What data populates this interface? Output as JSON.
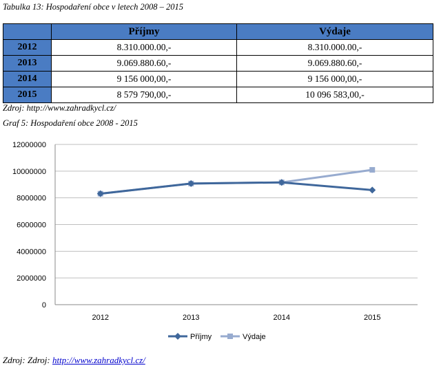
{
  "captions": {
    "table_title": "Tabulka 13: Hospodaření obce v letech 2008 – 2015",
    "table_source": "Zdroj: http://www.zahradkycl.cz/",
    "chart_title": "Graf 5: Hospodaření obce 2008 - 2015",
    "chart_source_prefix": "Zdroj: Zdroj: ",
    "chart_source_link": "http://www.zahradkycl.cz/"
  },
  "table": {
    "headers": [
      "",
      "Příjmy",
      "Výdaje"
    ],
    "rows": [
      {
        "year": "2012",
        "prijmy": "8.310.000.00,-",
        "vydaje": "8.310.000.00,-"
      },
      {
        "year": "2013",
        "prijmy": "9.069.880.60,-",
        "vydaje": "9.069.880.60,-"
      },
      {
        "year": "2014",
        "prijmy": "9 156 000,00,-",
        "vydaje": "9 156 000,00,-"
      },
      {
        "year": "2015",
        "prijmy": "8 579 790,00,-",
        "vydaje": "10 096 583,00,-"
      }
    ]
  },
  "chart_data": {
    "type": "line",
    "title": "",
    "xlabel": "",
    "ylabel": "",
    "categories": [
      "2012",
      "2013",
      "2014",
      "2015"
    ],
    "ylim": [
      0,
      12000000
    ],
    "yticks": [
      "0",
      "2000000",
      "4000000",
      "6000000",
      "8000000",
      "10000000",
      "12000000"
    ],
    "grid": true,
    "legend": "bottom",
    "series": [
      {
        "name": "Příjmy",
        "values": [
          8310000,
          9069880.6,
          9156000,
          8579790
        ],
        "color": "#3f679b",
        "marker": "diamond"
      },
      {
        "name": "Výdaje",
        "values": [
          8310000,
          9069880.6,
          9156000,
          10096583
        ],
        "color": "#97abcf",
        "marker": "square"
      }
    ]
  }
}
